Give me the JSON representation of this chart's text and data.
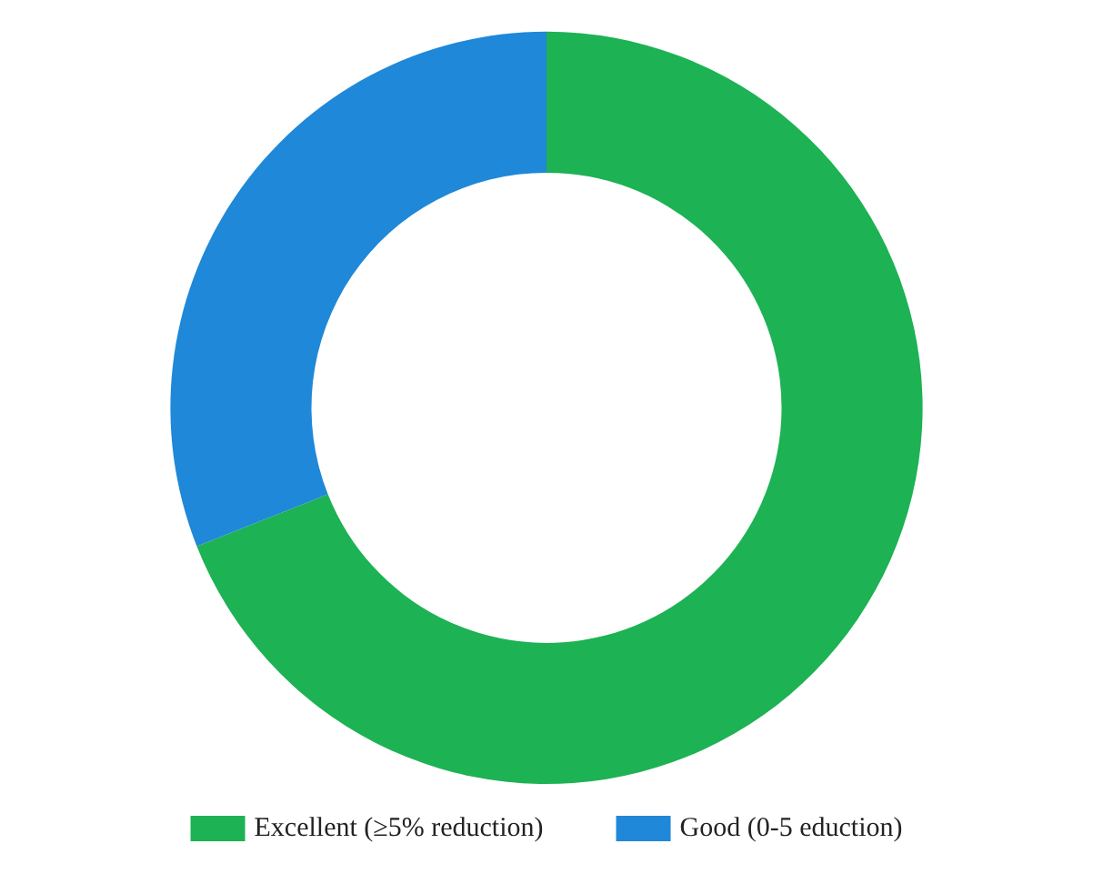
{
  "chart_data": {
    "type": "donut",
    "categories": [
      "Excellent (≥5% reduction)",
      "Good (0-5 eduction)"
    ],
    "values": [
      69,
      31
    ],
    "colors": [
      "#1db254",
      "#1f88d8"
    ],
    "legend": "bottom"
  }
}
